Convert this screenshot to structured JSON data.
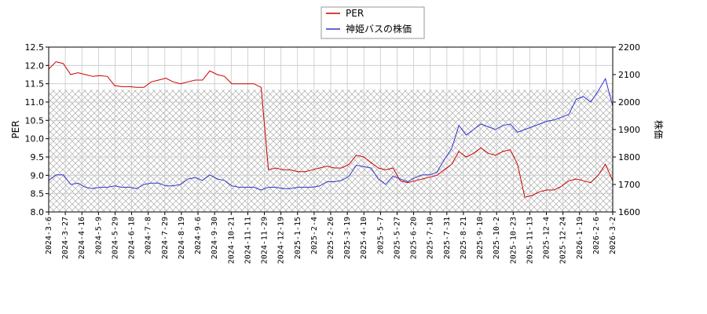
{
  "chart_data": {
    "type": "line",
    "title": "",
    "xlabel": "",
    "ylabel_left": "PER",
    "ylabel_right": "株価",
    "ylim_left": [
      8.0,
      12.5
    ],
    "ylim_right": [
      1600,
      2200
    ],
    "yticks_left": [
      "8.0",
      "8.5",
      "9.0",
      "9.5",
      "10.0",
      "10.5",
      "11.0",
      "11.5",
      "12.0",
      "12.5"
    ],
    "yticks_right": [
      "1600",
      "1700",
      "1800",
      "1900",
      "2000",
      "2100",
      "2200"
    ],
    "x_ticks": [
      "2024-3-6",
      "2024-3-27",
      "2024-4-16",
      "2024-5-9",
      "2024-5-29",
      "2024-6-18",
      "2024-7-8",
      "2024-7-29",
      "2024-8-19",
      "2024-9-6",
      "2024-9-30",
      "2024-10-21",
      "2024-11-11",
      "2024-11-29",
      "2024-12-19",
      "2025-1-15",
      "2025-2-4",
      "2025-2-26",
      "2025-3-19",
      "2025-4-10",
      "2025-5-7",
      "2025-5-27",
      "2025-6-20",
      "2025-7-10",
      "2025-7-31",
      "2025-8-21",
      "2025-9-10",
      "2025-10-2",
      "2025-10-23",
      "2025-11-13",
      "2025-12-4",
      "2025-12-24",
      "2026-1-19",
      "2026-2-6",
      "2026-3-2"
    ],
    "grid": true,
    "legend_position": "top-center",
    "shaded_band_right": [
      1600,
      2045
    ],
    "colors": {
      "per": "#cc0000",
      "price": "#3333cc",
      "grid": "#c8c8c8",
      "band": "#999999"
    },
    "series": [
      {
        "name": "PER",
        "axis": "left",
        "values": [
          11.9,
          12.1,
          12.05,
          11.75,
          11.8,
          11.75,
          11.7,
          11.72,
          11.7,
          11.45,
          11.42,
          11.42,
          11.4,
          11.4,
          11.55,
          11.6,
          11.65,
          11.55,
          11.5,
          11.55,
          11.6,
          11.6,
          11.85,
          11.75,
          11.7,
          11.5,
          11.5,
          11.5,
          11.5,
          11.4,
          9.15,
          9.2,
          9.15,
          9.15,
          9.1,
          9.1,
          9.15,
          9.2,
          9.25,
          9.2,
          9.2,
          9.3,
          9.55,
          9.5,
          9.35,
          9.2,
          9.15,
          9.2,
          8.85,
          8.8,
          8.85,
          8.9,
          8.95,
          9.0,
          9.15,
          9.3,
          9.65,
          9.5,
          9.6,
          9.75,
          9.6,
          9.55,
          9.65,
          9.7,
          9.3,
          8.4,
          8.45,
          8.55,
          8.6,
          8.6,
          8.7,
          8.85,
          8.9,
          8.85,
          8.8,
          9.0,
          9.3,
          8.85
        ]
      },
      {
        "name": "神姫バスの株価",
        "axis": "right",
        "values": [
          1715,
          1735,
          1735,
          1700,
          1705,
          1690,
          1685,
          1690,
          1690,
          1695,
          1690,
          1690,
          1685,
          1700,
          1705,
          1705,
          1695,
          1695,
          1700,
          1720,
          1725,
          1715,
          1735,
          1720,
          1715,
          1695,
          1690,
          1690,
          1690,
          1680,
          1690,
          1690,
          1685,
          1685,
          1690,
          1690,
          1690,
          1695,
          1710,
          1710,
          1715,
          1730,
          1770,
          1765,
          1760,
          1720,
          1700,
          1730,
          1720,
          1710,
          1725,
          1735,
          1735,
          1745,
          1790,
          1830,
          1915,
          1880,
          1900,
          1920,
          1910,
          1900,
          1915,
          1920,
          1890,
          1900,
          1910,
          1920,
          1930,
          1935,
          1945,
          1955,
          2010,
          2020,
          2000,
          2040,
          2085,
          1985
        ]
      }
    ]
  }
}
